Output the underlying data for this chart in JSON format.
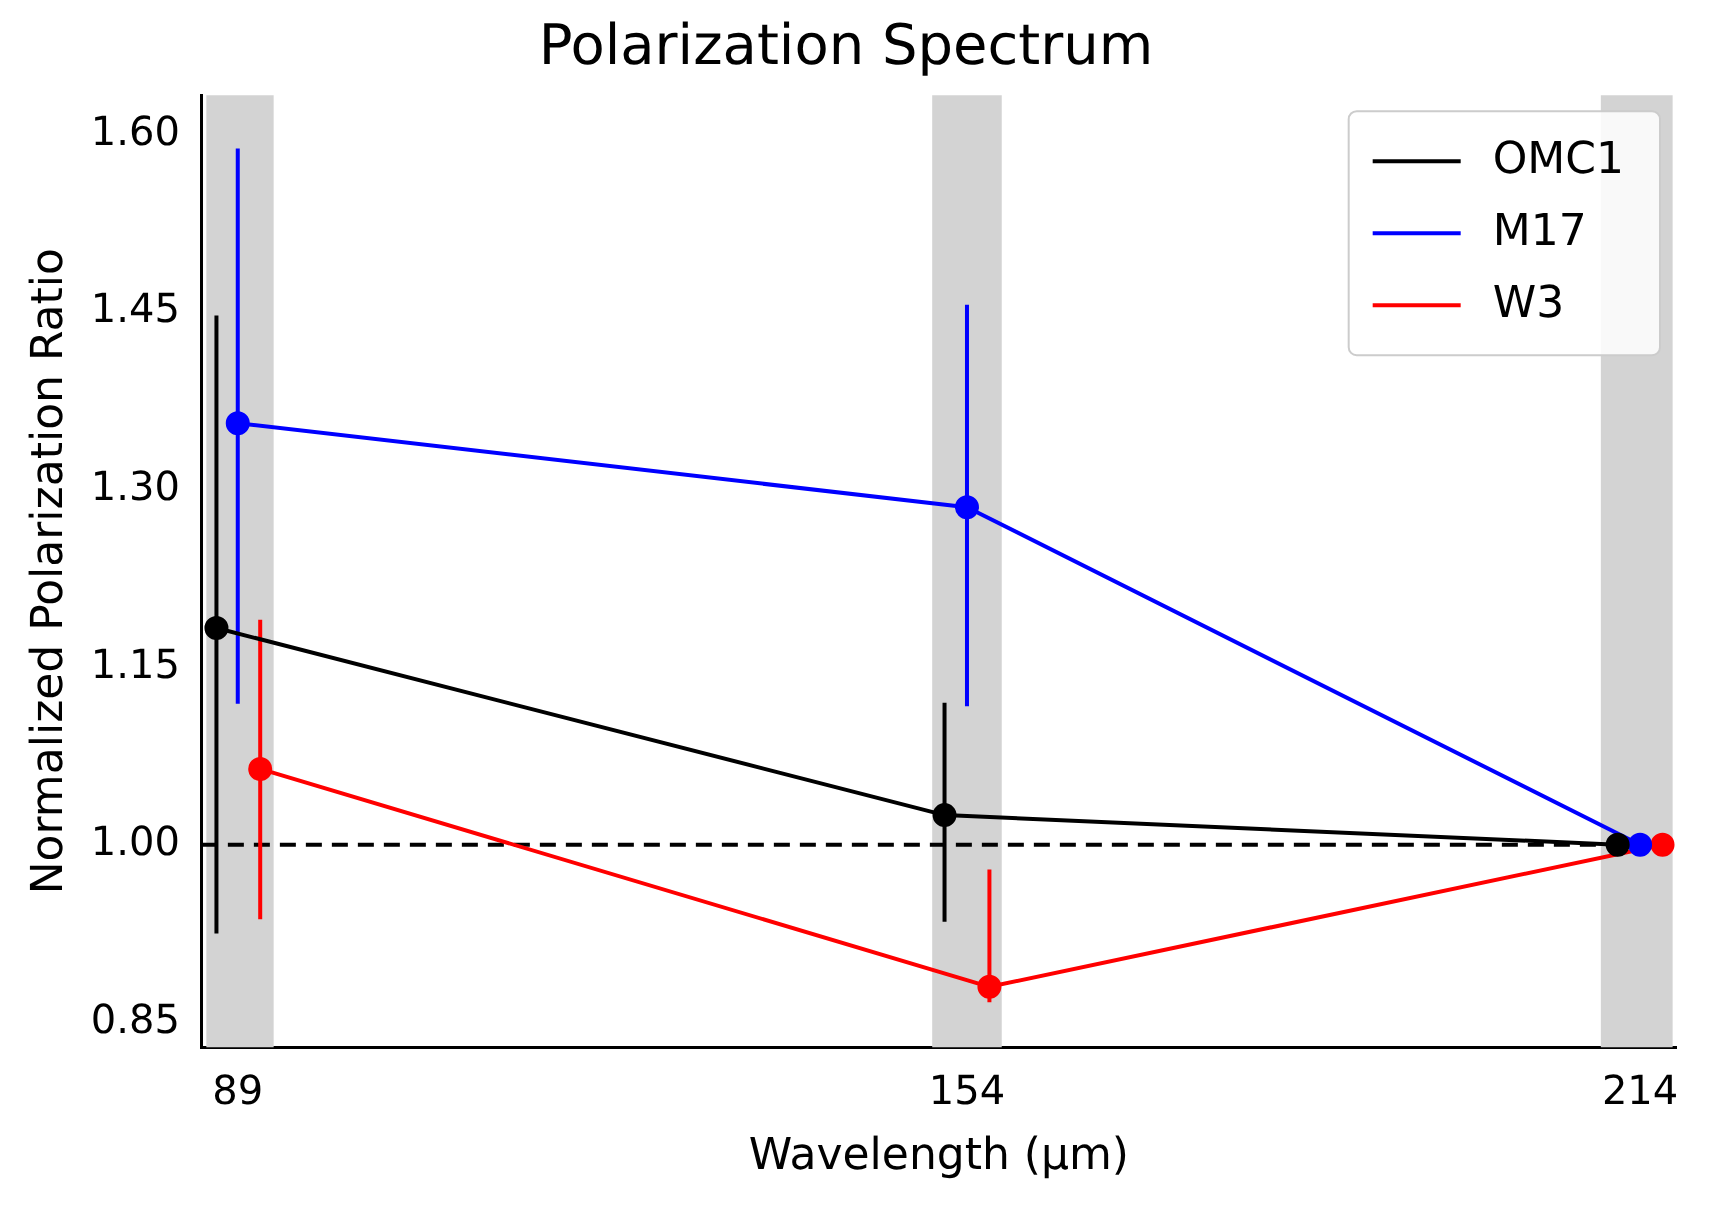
{
  "chart_data": {
    "type": "line",
    "title": "Polarization Spectrum",
    "xlabel": "Wavelength (μm)",
    "ylabel": "Normalized Polarization Ratio",
    "xlim": [
      85.8,
      217.2
    ],
    "xticks": [
      89,
      154,
      214
    ],
    "ylim": [
      0.829,
      1.633
    ],
    "yticks": [
      0.85,
      {
        "value": 1.0,
        "label": "1.00"
      },
      1.15,
      {
        "value": 1.3,
        "label": "1.30"
      },
      1.45,
      {
        "value": 1.6,
        "label": "1.60"
      }
    ],
    "series": [
      {
        "name": "OMC1",
        "color": "#000000",
        "x": [
          87.1,
          152,
          212
        ],
        "values": [
          1.183,
          1.025,
          1.0
        ],
        "errors": [
          [
            0.925,
            1.447
          ],
          [
            0.935,
            1.12
          ],
          null
        ]
      },
      {
        "name": "M17",
        "color": "#0000ff",
        "x": [
          89,
          154,
          214
        ],
        "values": [
          1.356,
          1.285,
          1.0
        ],
        "errors": [
          [
            1.119,
            1.588
          ],
          [
            1.117,
            1.456
          ],
          null
        ]
      },
      {
        "name": "W3",
        "color": "#ff0000",
        "x": [
          91,
          156,
          216
        ],
        "values": [
          1.064,
          0.88,
          1.0
        ],
        "errors": [
          [
            0.937,
            1.19
          ],
          [
            0.867,
            0.979
          ],
          null
        ]
      }
    ],
    "ref_lines": [
      {
        "axis": "y",
        "value": 1.0,
        "color": "#000000",
        "line_style": "dashed"
      }
    ],
    "bands": [
      {
        "axis": "x",
        "from": 86.2,
        "to": 92.2,
        "color": "#d3d3d3"
      },
      {
        "axis": "x",
        "from": 150.9,
        "to": 157.1,
        "color": "#d3d3d3"
      },
      {
        "axis": "x",
        "from": 210.5,
        "to": 216.9,
        "color": "#d3d3d3"
      }
    ],
    "legend": "top right",
    "grid": false,
    "marker": "circle",
    "line_style": "solid"
  }
}
